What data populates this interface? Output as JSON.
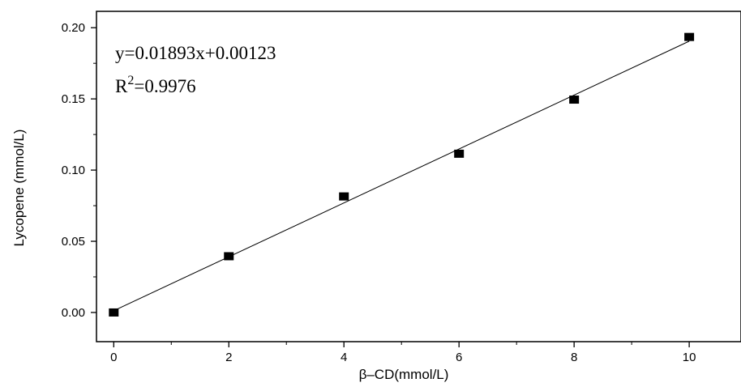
{
  "chart_data": {
    "type": "scatter",
    "title": "",
    "xlabel": "β–CD(mmol/L)",
    "ylabel": "Lycopene (mmol/L)",
    "xlim": [
      -0.3,
      10.9
    ],
    "ylim": [
      -0.0205,
      0.2115
    ],
    "x_ticks": [
      0,
      2,
      4,
      6,
      8,
      10
    ],
    "x_tick_labels": [
      "0",
      "2",
      "4",
      "6",
      "8",
      "10"
    ],
    "y_ticks": [
      0.0,
      0.05,
      0.1,
      0.15,
      0.2
    ],
    "y_tick_labels": [
      "0.00",
      "0.05",
      "0.10",
      "0.15",
      "0.20"
    ],
    "grid": false,
    "legend": "none",
    "series": [
      {
        "marker": "square",
        "color": "#000000",
        "x": [
          0,
          2,
          4,
          6,
          8,
          10
        ],
        "y": [
          0.0,
          0.0395,
          0.0815,
          0.1115,
          0.1495,
          0.1935
        ]
      }
    ],
    "fit_line": {
      "slope": 0.01893,
      "intercept": 0.00123,
      "x_range": [
        0,
        10
      ],
      "color": "#000000"
    },
    "annotations": {
      "equation": "y=0.01893x+0.00123",
      "r2_prefix": "R",
      "r2_sup": "2",
      "r2_value": "=0.9976"
    }
  }
}
